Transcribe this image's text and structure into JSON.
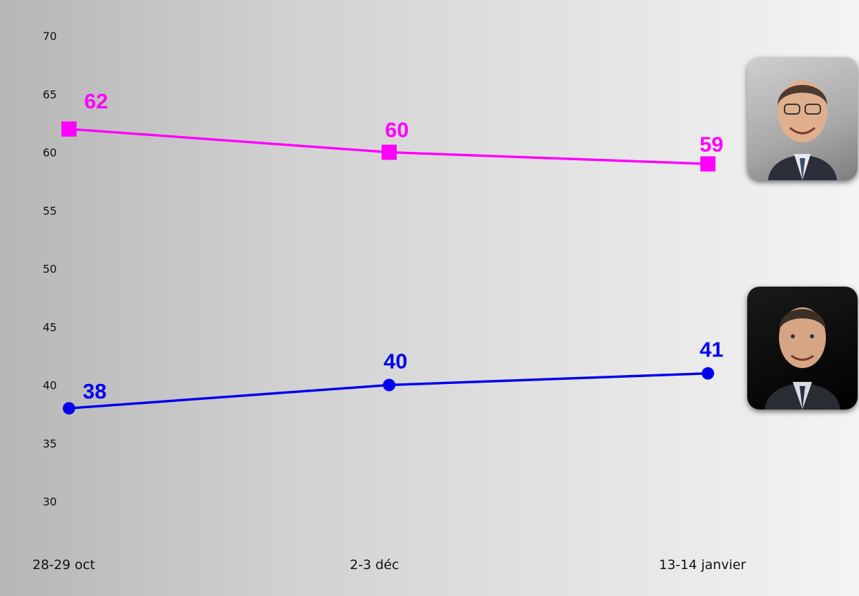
{
  "chart_data": {
    "type": "line",
    "categories": [
      "28-29 oct",
      "2-3 déc",
      "13-14 janvier"
    ],
    "series": [
      {
        "values": [
          62,
          60,
          59
        ],
        "color": "#ff00ff",
        "marker": "square"
      },
      {
        "values": [
          38,
          40,
          41
        ],
        "color": "#0000ee",
        "marker": "circle"
      }
    ],
    "yticks": [
      30,
      35,
      40,
      45,
      50,
      55,
      60,
      65,
      70
    ],
    "ylim": [
      30,
      70
    ],
    "grid": false,
    "legend": "none"
  },
  "portraits": [
    {
      "icon": "portrait-man-light-background-icon"
    },
    {
      "icon": "portrait-man-dark-background-icon"
    }
  ]
}
